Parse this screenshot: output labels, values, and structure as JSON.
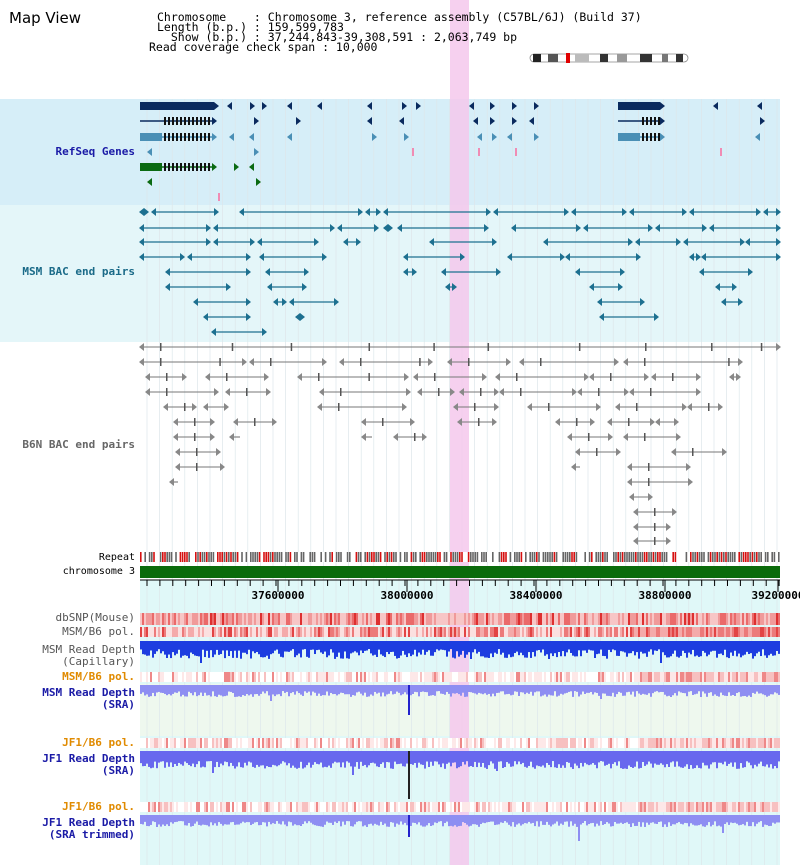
{
  "header": {
    "title": "Map View",
    "chromosome_line": "Chromosome    : Chromosome 3, reference assembly (C57BL/6J) (Build 37)",
    "length_line": "Length (b.p.) : 159,599,783",
    "show_line": "  Show (b.p.) : 37,244,843-39,308,591 : 2,063,749 bp",
    "coverage_line": "Read coverage check span : 10,000"
  },
  "tracks": {
    "refseq": "RefSeq Genes",
    "msm_bac": "MSM BAC end pairs",
    "b6n_bac": "B6N BAC end pairs",
    "repeat": "Repeat",
    "chromosome": "chromosome 3",
    "dbsnp": "dbSNP(Mouse)",
    "msm_b6_pol": "MSM/B6 pol.",
    "msm_depth_cap": "MSM Read Depth\n(Capillary)",
    "msm_b6_pol2": "MSM/B6 pol.",
    "msm_depth_sra": "MSM Read Depth\n(SRA)",
    "jf1_b6_pol": "JF1/B6 pol.",
    "jf1_depth_sra": "JF1 Read Depth\n(SRA)",
    "jf1_b6_pol2": "JF1/B6 pol.",
    "jf1_depth_trim": "JF1 Read Depth\n(SRA trimmed)"
  },
  "axis": {
    "ticks": [
      "37600000",
      "38000000",
      "38400000",
      "38800000",
      "39200000"
    ]
  },
  "colors": {
    "refseq_bg": "#d6eef8",
    "msm_bac_bg": "#e4f6f9",
    "b6n_bg": "#ffffff",
    "lower_bg": "#e0f8f8",
    "highlight": "#f5c8ec",
    "gene_dark": "#0a2a5e",
    "gene_steel": "#4a8fb5",
    "gene_green": "#0a6a12",
    "msm_pair": "#1d7090",
    "b6n_pair": "#777777",
    "chromosome_bar": "#0b6b0b",
    "label_blue": "#1a1aa6",
    "label_teal": "#1a6a88",
    "label_orange": "#e08a00"
  }
}
